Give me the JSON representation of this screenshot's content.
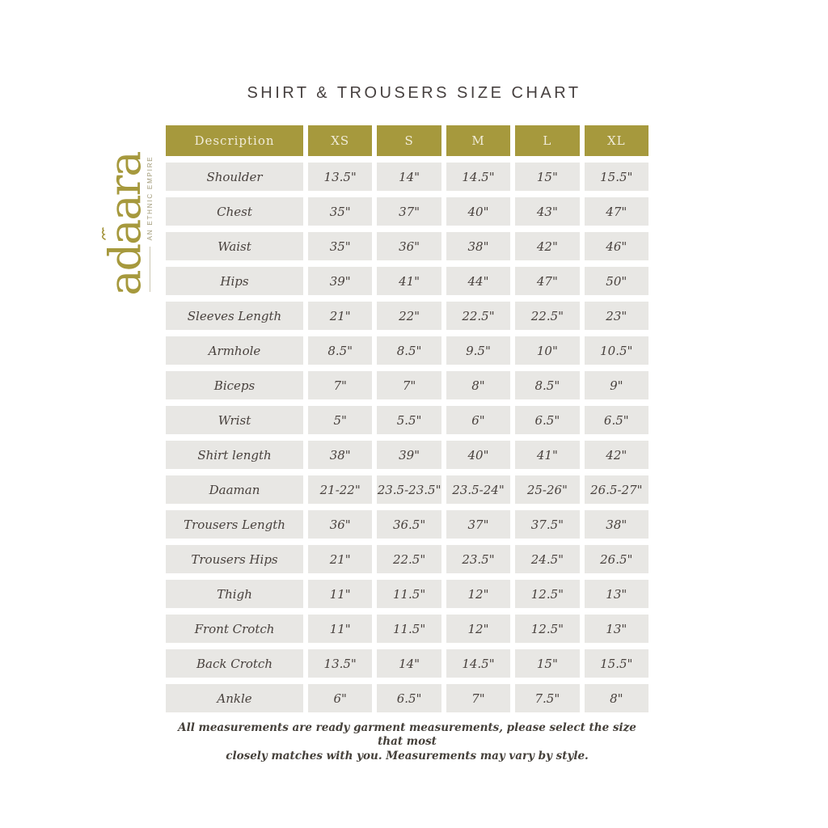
{
  "page": {
    "title": "SHIRT & TROUSERS SIZE CHART"
  },
  "logo": {
    "name": "adaara",
    "tagline": "AN ETHNIC EMPIRE"
  },
  "colors": {
    "header_bg": "#a6993d",
    "header_text": "#f1ecd9",
    "cell_bg": "#e8e7e4",
    "cell_text": "#48413d",
    "brand_gold": "#a4943c"
  },
  "table": {
    "columns": [
      "Description",
      "XS",
      "S",
      "M",
      "L",
      "XL"
    ],
    "rows": [
      {
        "label": "Shoulder",
        "values": [
          "13.5\"",
          "14\"",
          "14.5\"",
          "15\"",
          "15.5\""
        ]
      },
      {
        "label": "Chest",
        "values": [
          "35\"",
          "37\"",
          "40\"",
          "43\"",
          "47\""
        ]
      },
      {
        "label": "Waist",
        "values": [
          "35\"",
          "36\"",
          "38\"",
          "42\"",
          "46\""
        ]
      },
      {
        "label": "Hips",
        "values": [
          "39\"",
          "41\"",
          "44\"",
          "47\"",
          "50\""
        ]
      },
      {
        "label": "Sleeves Length",
        "values": [
          "21\"",
          "22\"",
          "22.5\"",
          "22.5\"",
          "23\""
        ]
      },
      {
        "label": "Armhole",
        "values": [
          "8.5\"",
          "8.5\"",
          "9.5\"",
          "10\"",
          "10.5\""
        ]
      },
      {
        "label": "Biceps",
        "values": [
          "7\"",
          "7\"",
          "8\"",
          "8.5\"",
          "9\""
        ]
      },
      {
        "label": "Wrist",
        "values": [
          "5\"",
          "5.5\"",
          "6\"",
          "6.5\"",
          "6.5\""
        ]
      },
      {
        "label": "Shirt length",
        "values": [
          "38\"",
          "39\"",
          "40\"",
          "41\"",
          "42\""
        ]
      },
      {
        "label": "Daaman",
        "values": [
          "21-22\"",
          "23.5-23.5\"",
          "23.5-24\"",
          "25-26\"",
          "26.5-27\""
        ]
      },
      {
        "label": "Trousers Length",
        "values": [
          "36\"",
          "36.5\"",
          "37\"",
          "37.5\"",
          "38\""
        ]
      },
      {
        "label": "Trousers Hips",
        "values": [
          "21\"",
          "22.5\"",
          "23.5\"",
          "24.5\"",
          "26.5\""
        ]
      },
      {
        "label": "Thigh",
        "values": [
          "11\"",
          "11.5\"",
          "12\"",
          "12.5\"",
          "13\""
        ]
      },
      {
        "label": "Front Crotch",
        "values": [
          "11\"",
          "11.5\"",
          "12\"",
          "12.5\"",
          "13\""
        ]
      },
      {
        "label": "Back Crotch",
        "values": [
          "13.5\"",
          "14\"",
          "14.5\"",
          "15\"",
          "15.5\""
        ]
      },
      {
        "label": "Ankle",
        "values": [
          "6\"",
          "6.5\"",
          "7\"",
          "7.5\"",
          "8\""
        ]
      }
    ]
  },
  "footer": {
    "line1": "All measurements are ready garment measurements, please select the size that most",
    "line2": "closely matches with you. Measurements may vary by style."
  }
}
